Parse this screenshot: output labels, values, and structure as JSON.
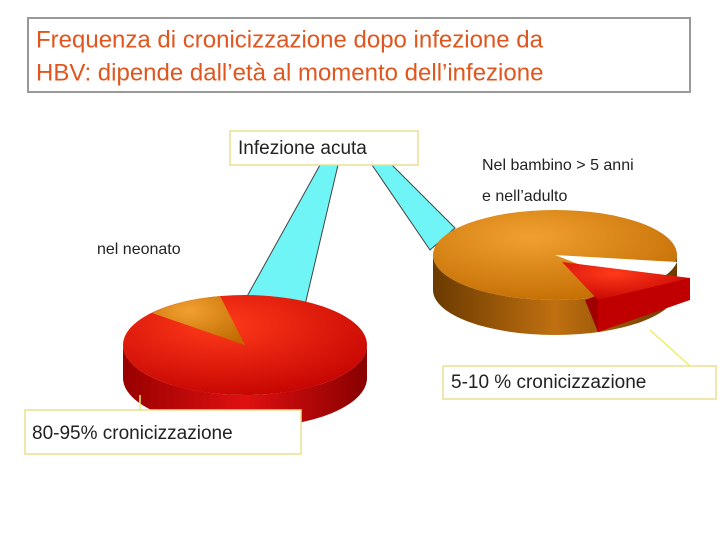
{
  "title": {
    "lines": [
      "Frequenza di cronicizzazione dopo infezione da",
      "HBV: dipende dall’età al momento dell’infezione"
    ]
  },
  "callouts": {
    "acute": "Infezione acuta",
    "child_adult": [
      "Nel bambino > 5 anni",
      "e nell’adulto"
    ],
    "newborn": "nel neonato",
    "right_rate": "5-10 % cronicizzazione",
    "left_rate": "80-95% cronicizzazione"
  }
}
